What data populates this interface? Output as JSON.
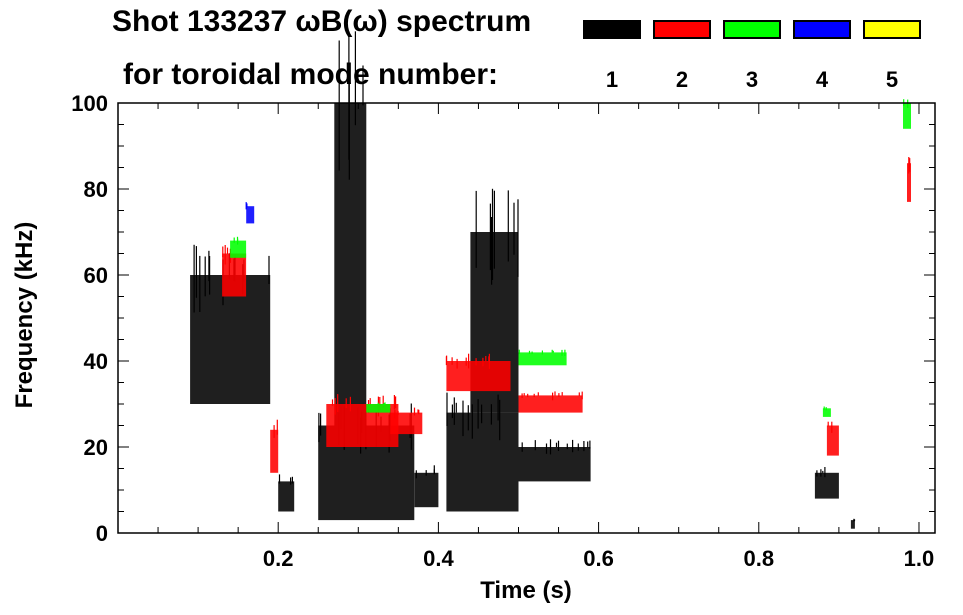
{
  "chart_data": {
    "type": "heatmap",
    "title_line1": "Shot 133237 ωB(ω) spectrum",
    "title_line2": "for toroidal mode number:",
    "xlabel": "Time (s)",
    "ylabel": "Frequency (kHz)",
    "xlim": [
      0.0,
      1.02
    ],
    "ylim": [
      0,
      100
    ],
    "x_ticks": [
      "0.2",
      "0.4",
      "0.6",
      "0.8",
      "1.0"
    ],
    "y_ticks": [
      "0",
      "20",
      "40",
      "60",
      "80",
      "100"
    ],
    "legend": [
      {
        "label": "1",
        "color": "#000000"
      },
      {
        "label": "2",
        "color": "#ff0000"
      },
      {
        "label": "3",
        "color": "#00ff00"
      },
      {
        "label": "4",
        "color": "#0000ff"
      },
      {
        "label": "5",
        "color": "#ffff00"
      }
    ],
    "series": [
      {
        "label": "1",
        "color": "#000000",
        "regions": [
          {
            "t": [
              0.09,
              0.19
            ],
            "f": [
              30,
              60
            ]
          },
          {
            "t": [
              0.2,
              0.22
            ],
            "f": [
              5,
              12
            ]
          },
          {
            "t": [
              0.25,
              0.37
            ],
            "f": [
              3,
              25
            ]
          },
          {
            "t": [
              0.27,
              0.31
            ],
            "f": [
              25,
              100
            ]
          },
          {
            "t": [
              0.37,
              0.4
            ],
            "f": [
              6,
              14
            ]
          },
          {
            "t": [
              0.41,
              0.5
            ],
            "f": [
              5,
              28
            ]
          },
          {
            "t": [
              0.44,
              0.5
            ],
            "f": [
              28,
              70
            ]
          },
          {
            "t": [
              0.5,
              0.59
            ],
            "f": [
              12,
              20
            ]
          },
          {
            "t": [
              0.87,
              0.9
            ],
            "f": [
              8,
              14
            ]
          },
          {
            "t": [
              0.915,
              0.92
            ],
            "f": [
              1,
              3
            ]
          }
        ]
      },
      {
        "label": "2",
        "color": "#ff0000",
        "regions": [
          {
            "t": [
              0.13,
              0.16
            ],
            "f": [
              55,
              65
            ]
          },
          {
            "t": [
              0.19,
              0.2
            ],
            "f": [
              14,
              24
            ]
          },
          {
            "t": [
              0.26,
              0.35
            ],
            "f": [
              20,
              30
            ]
          },
          {
            "t": [
              0.34,
              0.38
            ],
            "f": [
              23,
              28
            ]
          },
          {
            "t": [
              0.41,
              0.49
            ],
            "f": [
              33,
              40
            ]
          },
          {
            "t": [
              0.5,
              0.58
            ],
            "f": [
              28,
              32
            ]
          },
          {
            "t": [
              0.885,
              0.9
            ],
            "f": [
              18,
              25
            ]
          },
          {
            "t": [
              0.985,
              0.99
            ],
            "f": [
              77,
              86
            ]
          }
        ]
      },
      {
        "label": "3",
        "color": "#00ff00",
        "regions": [
          {
            "t": [
              0.14,
              0.16
            ],
            "f": [
              64,
              68
            ]
          },
          {
            "t": [
              0.31,
              0.34
            ],
            "f": [
              28,
              30
            ]
          },
          {
            "t": [
              0.5,
              0.56
            ],
            "f": [
              39,
              42
            ]
          },
          {
            "t": [
              0.88,
              0.89
            ],
            "f": [
              27,
              29
            ]
          },
          {
            "t": [
              0.98,
              0.99
            ],
            "f": [
              94,
              100
            ]
          }
        ]
      },
      {
        "label": "4",
        "color": "#0000ff",
        "regions": [
          {
            "t": [
              0.16,
              0.17
            ],
            "f": [
              72,
              76
            ]
          }
        ]
      },
      {
        "label": "5",
        "color": "#ffff00",
        "regions": []
      }
    ]
  }
}
